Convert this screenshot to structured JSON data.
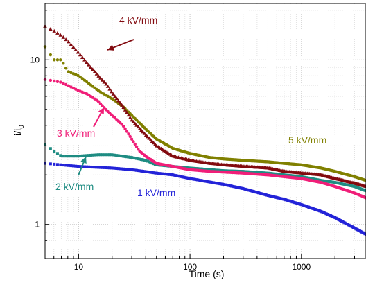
{
  "chart_data": {
    "type": "scatter",
    "xlabel": "Time (s)",
    "ylabel_main": "i/i",
    "ylabel_sub": "0",
    "xscale": "log",
    "yscale": "log",
    "xlim": [
      5,
      3800
    ],
    "ylim": [
      0.62,
      22
    ],
    "grid": true,
    "x_ticks": [
      {
        "v": 10,
        "label": "10"
      },
      {
        "v": 100,
        "label": "100"
      },
      {
        "v": 1000,
        "label": "1000"
      }
    ],
    "y_ticks": [
      {
        "v": 1,
        "label": "1"
      },
      {
        "v": 10,
        "label": "10"
      }
    ],
    "series": [
      {
        "name": "1 kV/mm",
        "color": "#2323d8",
        "marker": "square",
        "points": [
          [
            5,
            2.35
          ],
          [
            7,
            2.3
          ],
          [
            10,
            2.25
          ],
          [
            15,
            2.22
          ],
          [
            20,
            2.2
          ],
          [
            30,
            2.15
          ],
          [
            50,
            2.05
          ],
          [
            70,
            2.0
          ],
          [
            100,
            1.9
          ],
          [
            200,
            1.75
          ],
          [
            300,
            1.65
          ],
          [
            500,
            1.5
          ],
          [
            700,
            1.42
          ],
          [
            1000,
            1.32
          ],
          [
            1500,
            1.2
          ],
          [
            2000,
            1.1
          ],
          [
            3000,
            0.95
          ],
          [
            3800,
            0.87
          ]
        ]
      },
      {
        "name": "2 kV/mm",
        "color": "#1e8c82",
        "marker": "square",
        "points": [
          [
            5,
            3.05
          ],
          [
            7,
            2.6
          ],
          [
            10,
            2.6
          ],
          [
            15,
            2.65
          ],
          [
            20,
            2.65
          ],
          [
            30,
            2.55
          ],
          [
            40,
            2.45
          ],
          [
            50,
            2.3
          ],
          [
            70,
            2.25
          ],
          [
            100,
            2.2
          ],
          [
            200,
            2.12
          ],
          [
            300,
            2.1
          ],
          [
            500,
            2.05
          ],
          [
            700,
            2.0
          ],
          [
            1000,
            1.95
          ],
          [
            1500,
            1.85
          ],
          [
            2000,
            1.8
          ],
          [
            3000,
            1.7
          ],
          [
            3800,
            1.6
          ]
        ]
      },
      {
        "name": "3 kV/mm",
        "color": "#f01e78",
        "marker": "circle",
        "points": [
          [
            5,
            7.6
          ],
          [
            7,
            7.3
          ],
          [
            10,
            6.5
          ],
          [
            12,
            6.2
          ],
          [
            15,
            5.6
          ],
          [
            18,
            4.9
          ],
          [
            20,
            4.6
          ],
          [
            25,
            4.0
          ],
          [
            30,
            3.3
          ],
          [
            35,
            2.8
          ],
          [
            40,
            2.6
          ],
          [
            50,
            2.35
          ],
          [
            70,
            2.25
          ],
          [
            100,
            2.15
          ],
          [
            150,
            2.1
          ],
          [
            200,
            2.08
          ],
          [
            300,
            2.05
          ],
          [
            500,
            2.0
          ],
          [
            700,
            1.95
          ],
          [
            1000,
            1.9
          ],
          [
            1500,
            1.8
          ],
          [
            2000,
            1.7
          ],
          [
            3000,
            1.55
          ],
          [
            3800,
            1.45
          ]
        ]
      },
      {
        "name": "4 kV/mm",
        "color": "#820a0f",
        "marker": "triangle",
        "points": [
          [
            5,
            16
          ],
          [
            6,
            15
          ],
          [
            7,
            14
          ],
          [
            8,
            13
          ],
          [
            10,
            11
          ],
          [
            12,
            9.5
          ],
          [
            15,
            8
          ],
          [
            18,
            7
          ],
          [
            20,
            6.3
          ],
          [
            25,
            5.2
          ],
          [
            30,
            4.3
          ],
          [
            40,
            3.5
          ],
          [
            50,
            3.0
          ],
          [
            70,
            2.6
          ],
          [
            100,
            2.45
          ],
          [
            150,
            2.35
          ],
          [
            200,
            2.3
          ],
          [
            300,
            2.25
          ],
          [
            500,
            2.2
          ],
          [
            700,
            2.1
          ],
          [
            1000,
            2.05
          ],
          [
            1500,
            2.0
          ],
          [
            2000,
            1.9
          ],
          [
            3000,
            1.78
          ],
          [
            3800,
            1.7
          ]
        ]
      },
      {
        "name": "5 kV/mm",
        "color": "#808000",
        "marker": "circle",
        "points": [
          [
            5,
            12
          ],
          [
            6,
            10
          ],
          [
            7,
            10
          ],
          [
            8,
            8.5
          ],
          [
            10,
            8
          ],
          [
            12,
            7.3
          ],
          [
            15,
            6.5
          ],
          [
            20,
            5.8
          ],
          [
            25,
            5.2
          ],
          [
            30,
            4.6
          ],
          [
            40,
            3.8
          ],
          [
            50,
            3.3
          ],
          [
            70,
            2.9
          ],
          [
            100,
            2.7
          ],
          [
            150,
            2.55
          ],
          [
            200,
            2.5
          ],
          [
            300,
            2.45
          ],
          [
            500,
            2.4
          ],
          [
            700,
            2.35
          ],
          [
            1000,
            2.3
          ],
          [
            1500,
            2.2
          ],
          [
            2000,
            2.1
          ],
          [
            3000,
            1.95
          ],
          [
            3800,
            1.85
          ]
        ]
      }
    ],
    "annotations": [
      {
        "text": "4 kV/mm",
        "color": "#820a0f"
      },
      {
        "text": "5 kV/mm",
        "color": "#808000"
      },
      {
        "text": "3 kV/mm",
        "color": "#f01e78"
      },
      {
        "text": "2 kV/mm",
        "color": "#1e8c82"
      },
      {
        "text": "1 kV/mm",
        "color": "#2323d8"
      }
    ]
  }
}
